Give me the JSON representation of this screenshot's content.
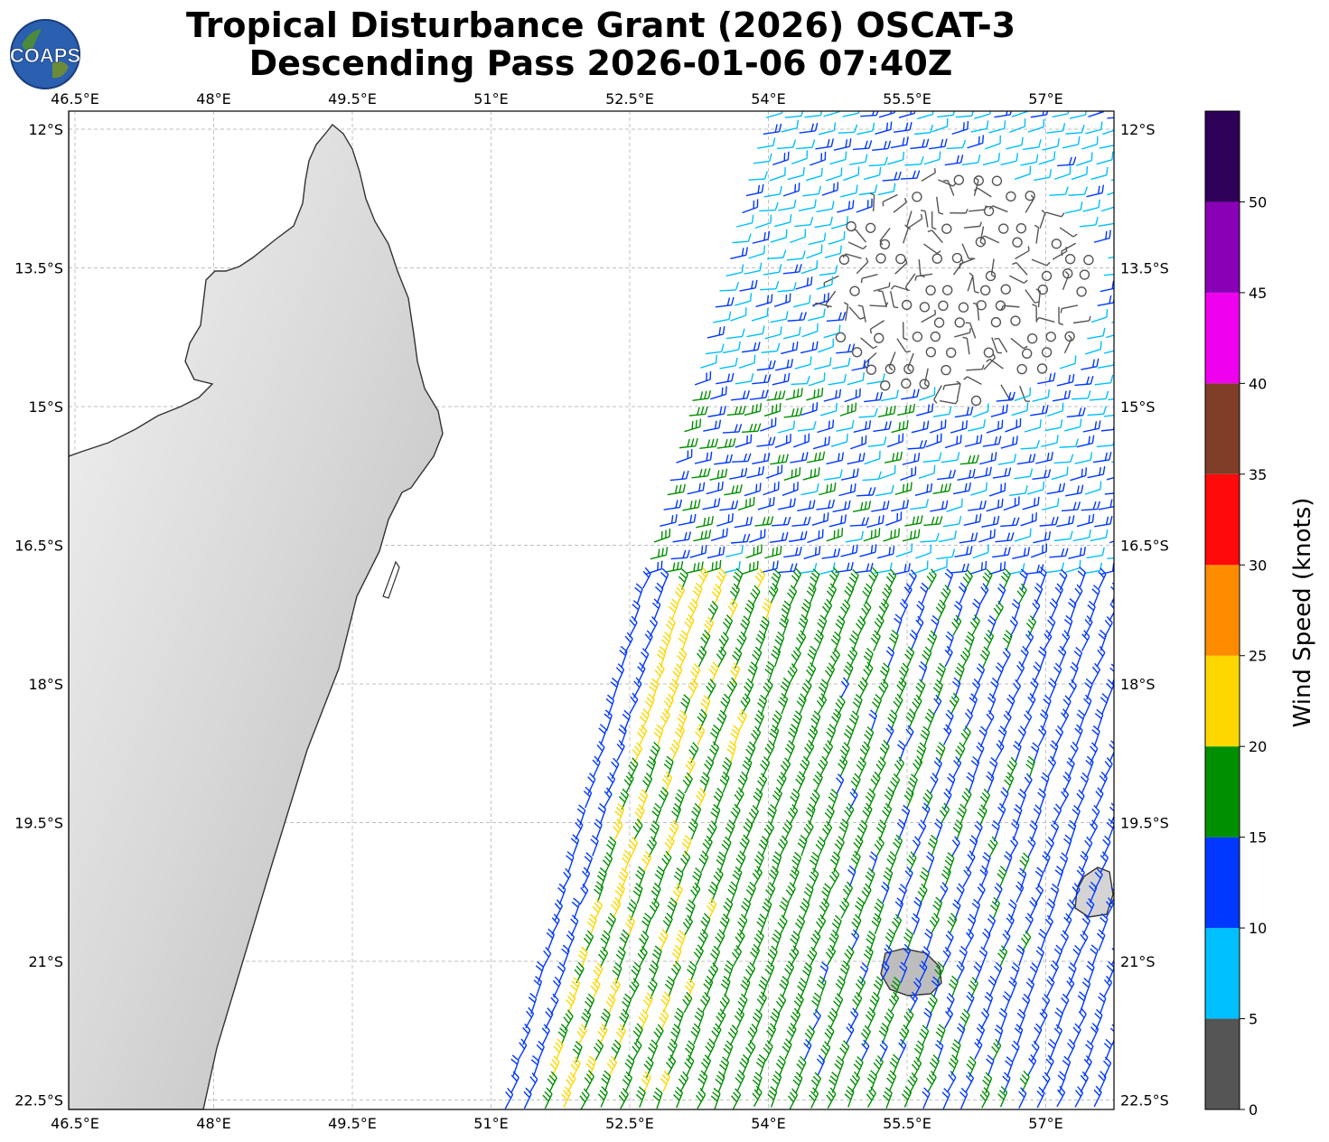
{
  "title_line1": "Tropical Disturbance Grant (2026) OSCAT-3",
  "title_line2": "Descending Pass 2026-01-06 07:40Z",
  "logo_text": "COAPS",
  "map": {
    "lon_labels": [
      "46.5°E",
      "48°E",
      "49.5°E",
      "51°E",
      "52.5°E",
      "54°E",
      "55.5°E",
      "57°E"
    ],
    "lat_labels": [
      "12°S",
      "13.5°S",
      "15°S",
      "16.5°S",
      "18°S",
      "19.5°S",
      "21°S",
      "22.5°S"
    ],
    "lon_range": [
      46.5,
      57.8
    ],
    "lat_range": [
      -22.6,
      -11.8
    ],
    "land_fill": "#e0e0e0",
    "coast_color": "#333333"
  },
  "colorbar": {
    "label": "Wind Speed (knots)",
    "ticks": [
      "0",
      "5",
      "10",
      "15",
      "20",
      "25",
      "30",
      "35",
      "40",
      "45",
      "50"
    ],
    "bins": [
      {
        "range": [
          0,
          5
        ],
        "color": "#555555"
      },
      {
        "range": [
          5,
          10
        ],
        "color": "#00bfff"
      },
      {
        "range": [
          10,
          15
        ],
        "color": "#0038ff"
      },
      {
        "range": [
          15,
          20
        ],
        "color": "#008f00"
      },
      {
        "range": [
          20,
          25
        ],
        "color": "#ffd700"
      },
      {
        "range": [
          25,
          30
        ],
        "color": "#ff8c00"
      },
      {
        "range": [
          30,
          35
        ],
        "color": "#ff0a0a"
      },
      {
        "range": [
          35,
          40
        ],
        "color": "#7f3d26"
      },
      {
        "range": [
          40,
          45
        ],
        "color": "#ef00ef"
      },
      {
        "range": [
          45,
          50
        ],
        "color": "#8a00b7"
      },
      {
        "range": [
          50,
          55
        ],
        "color": "#2e0057"
      }
    ]
  }
}
